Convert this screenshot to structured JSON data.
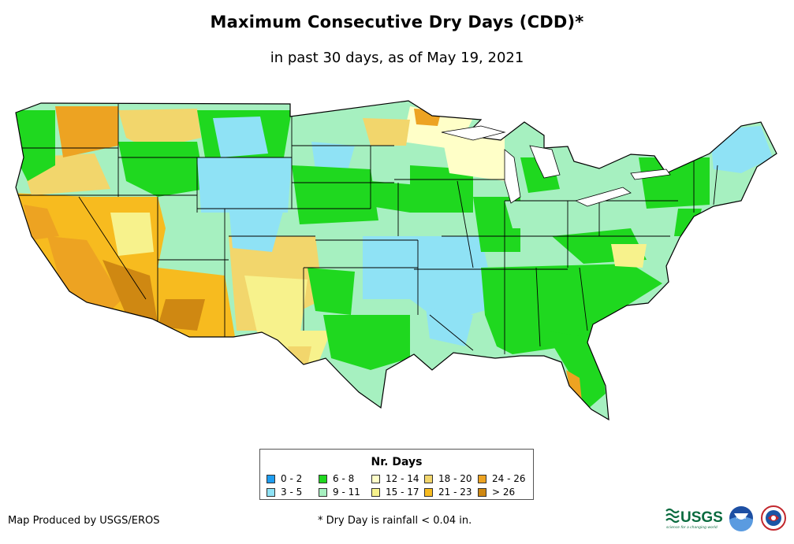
{
  "title": "Maximum Consecutive Dry Days (CDD)*",
  "subtitle": "in past 30 days, as of May 19, 2021",
  "legend": {
    "title": "Nr. Days",
    "items": [
      {
        "label": "0 - 2",
        "color": "#1e9df0"
      },
      {
        "label": "3 - 5",
        "color": "#8fe2f5"
      },
      {
        "label": "6 - 8",
        "color": "#1fd81f"
      },
      {
        "label": "9 - 11",
        "color": "#a6f0c0"
      },
      {
        "label": "12 - 14",
        "color": "#ffffc8"
      },
      {
        "label": "15 - 17",
        "color": "#f7f28c"
      },
      {
        "label": "18 - 20",
        "color": "#f2d66c"
      },
      {
        "label": "21 - 23",
        "color": "#f7bb1f"
      },
      {
        "label": "24 - 26",
        "color": "#eda322"
      },
      {
        "label": "> 26",
        "color": "#cf8812"
      }
    ]
  },
  "credit": "Map Produced by USGS/EROS",
  "footnote": "* Dry Day is rainfall < 0.04 in.",
  "logos": {
    "usgs": "USGS",
    "usgs_tagline": "science for a changing world",
    "noaa": "noaa",
    "nws_icon": "national-weather-service-logo"
  }
}
